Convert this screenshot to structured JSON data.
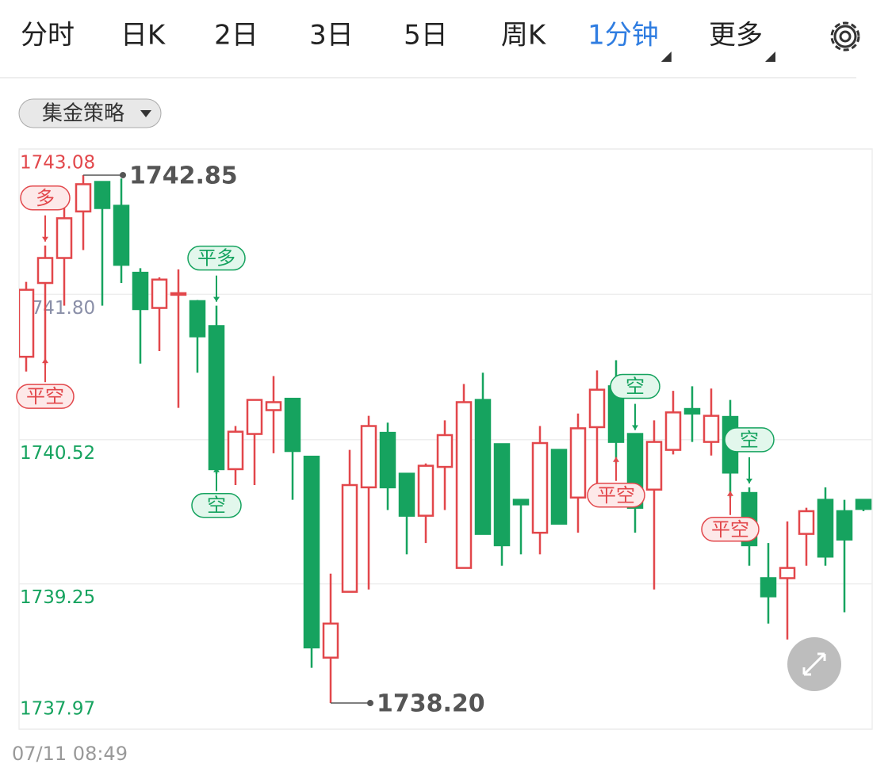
{
  "tabs": [
    {
      "label": "分时",
      "active": false
    },
    {
      "label": "日K",
      "active": false
    },
    {
      "label": "2日",
      "active": false
    },
    {
      "label": "3日",
      "active": false
    },
    {
      "label": "5日",
      "active": false
    },
    {
      "label": "周K",
      "active": false
    },
    {
      "label": "1分钟",
      "active": true,
      "dropdown": true
    },
    {
      "label": "更多",
      "active": false,
      "dropdown": true
    }
  ],
  "strategy_button": "集金策略",
  "timestamp": "07/11 08:49",
  "chart_data": {
    "type": "candlestick",
    "up_color": "#e2474b",
    "down_color": "#16a35f",
    "ylim": [
      1737.97,
      1743.08
    ],
    "yticks": [
      1737.97,
      1739.25,
      1740.52,
      {
        "value": 1741.8,
        "label": "1741.80"
      },
      1743.08
    ],
    "ytick_colors": [
      "#16a35f",
      "#16a35f",
      "#16a35f",
      "#8a8fa8",
      "#e2474b"
    ],
    "grid": true,
    "open": [
      1741.25,
      1741.9,
      1742.12,
      1742.53,
      1742.79,
      1742.58,
      1741.99,
      1741.68,
      1741.8,
      1741.74,
      1741.52,
      1740.26,
      1740.57,
      1740.78,
      1740.88,
      1740.37,
      1738.6,
      1739.18,
      1740.1,
      1740.58,
      1740.22,
      1739.85,
      1740.28,
      1739.39,
      1740.87,
      1740.48,
      1739.99,
      1739.7,
      1740.43,
      1740.01,
      1740.63,
      1740.99,
      1740.57,
      1740.08,
      1740.43,
      1740.79,
      1740.5,
      1740.72,
      1740.05,
      1739.3,
      1739.3,
      1739.69,
      1739.99,
      1739.89,
      1739.99
    ],
    "high": [
      1741.91,
      1742.23,
      1742.61,
      1742.85,
      1742.79,
      1742.82,
      1742.03,
      1741.95,
      1742.02,
      1741.75,
      1741.7,
      1740.64,
      1740.87,
      1741.08,
      1740.88,
      1740.37,
      1739.34,
      1740.43,
      1740.73,
      1740.67,
      1740.22,
      1740.31,
      1740.69,
      1741.01,
      1741.11,
      1740.48,
      1739.99,
      1740.64,
      1740.43,
      1740.75,
      1741.13,
      1741.22,
      1740.57,
      1740.69,
      1740.95,
      1740.99,
      1740.97,
      1740.87,
      1740.1,
      1739.61,
      1739.8,
      1739.92,
      1740.1,
      1739.99,
      1739.99
    ],
    "low": [
      1741.12,
      1741.18,
      1741.7,
      1742.19,
      1741.7,
      1741.9,
      1741.19,
      1741.3,
      1740.8,
      1741.11,
      1740.22,
      1740.12,
      1740.12,
      1740.4,
      1739.99,
      1738.51,
      1738.2,
      1739.18,
      1739.2,
      1739.9,
      1739.51,
      1739.61,
      1739.9,
      1739.39,
      1739.69,
      1739.41,
      1739.51,
      1739.51,
      1739.78,
      1739.7,
      1740.1,
      1740.31,
      1739.7,
      1739.2,
      1740.39,
      1740.5,
      1740.38,
      1740.01,
      1739.41,
      1738.9,
      1738.76,
      1739.41,
      1739.41,
      1739.0,
      1739.89
    ],
    "close": [
      1741.84,
      1742.12,
      1742.47,
      1742.77,
      1742.56,
      1742.06,
      1741.67,
      1741.93,
      1741.81,
      1741.43,
      1740.26,
      1740.59,
      1740.87,
      1740.85,
      1740.42,
      1738.69,
      1738.9,
      1740.12,
      1740.64,
      1740.1,
      1739.85,
      1740.29,
      1740.56,
      1740.85,
      1739.69,
      1739.59,
      1739.95,
      1740.49,
      1739.78,
      1740.62,
      1740.96,
      1740.5,
      1739.92,
      1740.5,
      1740.76,
      1740.75,
      1740.73,
      1740.23,
      1739.59,
      1739.14,
      1739.39,
      1739.89,
      1739.49,
      1739.64,
      1739.91
    ],
    "annotations": [
      {
        "index": 3,
        "value": 1742.85
      },
      {
        "index": 16,
        "value": 1738.2,
        "label": "1738.20"
      }
    ],
    "signals": [
      {
        "label": "多",
        "index": 1,
        "side": "above",
        "color": "red"
      },
      {
        "label": "平空",
        "index": 1,
        "side": "below",
        "color": "red"
      },
      {
        "label": "平多",
        "index": 10,
        "side": "above",
        "color": "green"
      },
      {
        "label": "空",
        "index": 10,
        "side": "below",
        "color": "green"
      },
      {
        "label": "平空",
        "index": 31,
        "side": "below",
        "color": "red"
      },
      {
        "label": "空",
        "index": 32,
        "side": "above",
        "color": "green"
      },
      {
        "label": "平空",
        "index": 37,
        "side": "below",
        "color": "red"
      },
      {
        "label": "空",
        "index": 38,
        "side": "above",
        "color": "green"
      }
    ]
  }
}
